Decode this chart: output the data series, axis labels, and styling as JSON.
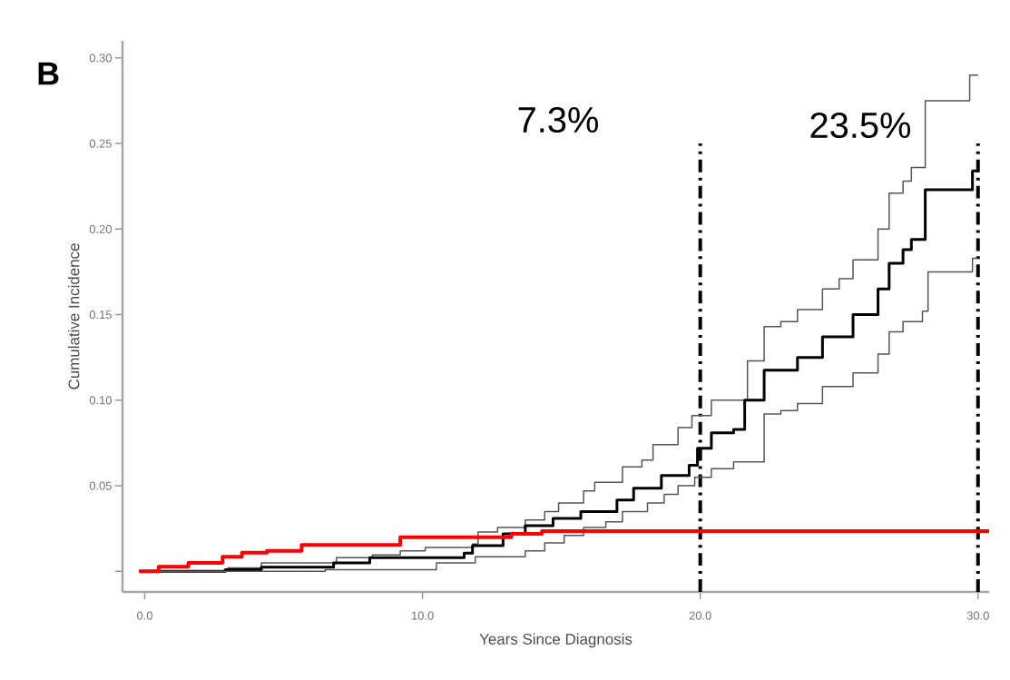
{
  "chart_data": {
    "type": "step",
    "xlabel": "Years Since Diagnosis",
    "ylabel": "Cumulative Incidence",
    "annotations": [
      "B",
      "7.3%",
      "23.5%"
    ],
    "xlim": [
      -0.8,
      30.4
    ],
    "ylim": [
      -0.012,
      0.31
    ],
    "xticks": [
      {
        "value": 0,
        "label": "0.0"
      },
      {
        "value": 10,
        "label": "10.0"
      },
      {
        "value": 20,
        "label": "20.0"
      },
      {
        "value": 30,
        "label": "30.0"
      }
    ],
    "yticks": [
      {
        "value": 0,
        "label": null
      },
      {
        "value": 0.05,
        "label": "0.05"
      },
      {
        "value": 0.1,
        "label": "0.10"
      },
      {
        "value": 0.15,
        "label": "0.15"
      },
      {
        "value": 0.2,
        "label": "0.20"
      },
      {
        "value": 0.25,
        "label": "0.25"
      },
      {
        "value": 0.3,
        "label": "0.30"
      }
    ],
    "ref_lines": [
      {
        "axis": "x",
        "value": 20,
        "line_style": "dashdot",
        "color": "#000000"
      },
      {
        "axis": "x",
        "value": 30,
        "line_style": "dashdot",
        "color": "#000000"
      }
    ],
    "series": [
      {
        "color": "#555555",
        "x": [
          -0.2,
          3,
          4.2,
          6.9,
          8.2,
          9.2,
          10.1,
          11.8,
          12.0,
          12.7,
          13.7,
          14.4,
          14.9,
          15.8,
          16.2,
          17.2,
          17.9,
          18.3,
          19.2,
          19.7,
          20.4,
          21.1,
          21.7,
          22.3,
          22.9,
          23.5,
          24.4,
          25.0,
          25.5,
          26.4,
          26.8,
          27.3,
          27.6,
          28.1,
          29.7,
          30.0
        ],
        "values": [
          0,
          0.002,
          0.005,
          0.008,
          0.0096,
          0.012,
          0.014,
          0.016,
          0.023,
          0.0256,
          0.03,
          0.035,
          0.04,
          0.047,
          0.052,
          0.061,
          0.065,
          0.074,
          0.084,
          0.091,
          0.1,
          0.1,
          0.123,
          0.143,
          0.146,
          0.153,
          0.165,
          0.171,
          0.182,
          0.2,
          0.221,
          0.228,
          0.236,
          0.275,
          0.29,
          0.29
        ]
      },
      {
        "color": "#000000",
        "x": [
          -0.2,
          2.9,
          4.2,
          6.8,
          8.1,
          11.5,
          11.8,
          12.9,
          13.7,
          14.7,
          15.7,
          17.0,
          17.6,
          18.6,
          19.6,
          19.9,
          20.4,
          21.2,
          21.6,
          22.3,
          23.5,
          24.4,
          25.5,
          26.4,
          26.8,
          27.3,
          27.6,
          28.1,
          29.8,
          30.0
        ],
        "values": [
          0,
          0.001,
          0.0025,
          0.005,
          0.008,
          0.0107,
          0.015,
          0.022,
          0.0267,
          0.031,
          0.035,
          0.0417,
          0.0486,
          0.056,
          0.062,
          0.072,
          0.081,
          0.083,
          0.1,
          0.1175,
          0.125,
          0.137,
          0.15,
          0.165,
          0.18,
          0.188,
          0.194,
          0.223,
          0.234,
          0.234
        ]
      },
      {
        "color": "#555555",
        "x": [
          -0.2,
          6.5,
          10.5,
          11.9,
          13.7,
          14.4,
          15.1,
          15.8,
          16.6,
          17.2,
          18.1,
          18.7,
          19.2,
          19.8,
          20.4,
          21.2,
          22.3,
          22.9,
          23.5,
          24.4,
          25.5,
          26.4,
          26.8,
          27.3,
          28.0,
          28.2,
          29.8,
          30.0
        ],
        "values": [
          0,
          0.001,
          0.005,
          0.0085,
          0.012,
          0.0166,
          0.021,
          0.0256,
          0.029,
          0.035,
          0.04,
          0.045,
          0.05,
          0.055,
          0.06,
          0.064,
          0.092,
          0.094,
          0.098,
          0.108,
          0.116,
          0.127,
          0.14,
          0.146,
          0.152,
          0.175,
          0.183,
          0.183
        ]
      },
      {
        "color": "#ff0000",
        "x": [
          -0.2,
          0.5,
          1.57,
          2.8,
          3.5,
          4.4,
          5.65,
          9.2,
          13.2,
          14.3,
          30.4
        ],
        "values": [
          0,
          0.0027,
          0.005,
          0.0085,
          0.011,
          0.012,
          0.0155,
          0.02,
          0.022,
          0.0235,
          0.0235
        ]
      }
    ]
  }
}
